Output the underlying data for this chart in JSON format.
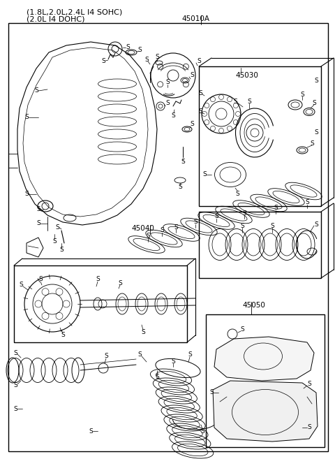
{
  "title_line1": "(1.8L,2.0L,2.4L I4 SOHC)",
  "title_line2": "(2.0L I4 DOHC)",
  "label_45010A": "45010A",
  "label_45030": "45030",
  "label_45040": "45040",
  "label_45050": "45050",
  "bg_color": "#ffffff",
  "line_color": "#000000",
  "text_color": "#000000",
  "title_fontsize": 8,
  "label_fontsize": 7.5,
  "s_fontsize": 6.5,
  "fig_width": 4.8,
  "fig_height": 6.57,
  "dpi": 100
}
